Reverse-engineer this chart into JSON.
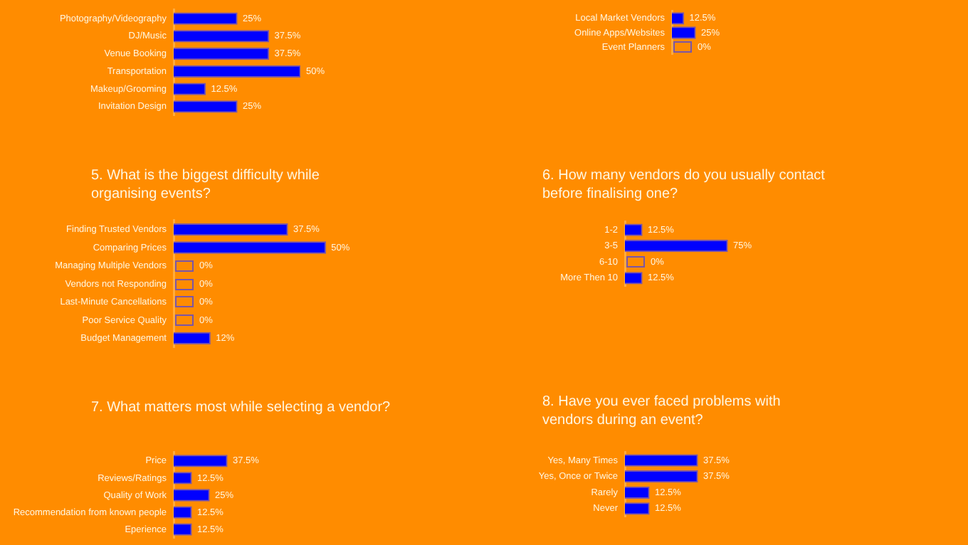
{
  "chart_data": [
    {
      "type": "bar",
      "orientation": "horizontal",
      "tick_labels": "y",
      "color": "#0000ff",
      "categories": [
        "Photography/Videography",
        "DJ/Music",
        "Venue Booking",
        "Transportation",
        "Makeup/Grooming",
        "Invitation Design"
      ],
      "values": [
        25,
        37.5,
        37.5,
        50,
        12.5,
        25
      ],
      "value_labels": [
        "25%",
        "37.5%",
        "37.5%",
        "50%",
        "12.5%",
        "25%"
      ]
    },
    {
      "type": "bar",
      "orientation": "horizontal",
      "tick_labels": "y",
      "color": "#0000ff",
      "categories": [
        "Local Market Vendors",
        "Online Apps/Websites",
        "Event Planners"
      ],
      "values": [
        12.5,
        25,
        0
      ],
      "value_labels": [
        "12.5%",
        "25%",
        "0%"
      ]
    },
    {
      "type": "bar",
      "orientation": "horizontal",
      "tick_labels": "y",
      "color": "#0000ff",
      "title": "5. What is the biggest difficulty while organising events?",
      "categories": [
        "Finding Trusted Vendors",
        "Comparing Prices",
        "Managing Multiple Vendors",
        "Vendors not Responding",
        "Last-Minute Cancellations",
        "Poor Service Quality",
        "Budget Management"
      ],
      "values": [
        37.5,
        50,
        0,
        0,
        0,
        0,
        12
      ],
      "value_labels": [
        "37.5%",
        "50%",
        "0%",
        "0%",
        "0%",
        "0%",
        "12%"
      ]
    },
    {
      "type": "bar",
      "orientation": "horizontal",
      "tick_labels": "y",
      "color": "#0000ff",
      "title": "6. How many vendors do you usually contact before finalising one?",
      "categories": [
        "1-2",
        "3-5",
        "6-10",
        "More Then 10"
      ],
      "values": [
        12.5,
        75,
        0,
        12.5
      ],
      "value_labels": [
        "12.5%",
        "75%",
        "0%",
        "12.5%"
      ]
    },
    {
      "type": "bar",
      "orientation": "horizontal",
      "tick_labels": "y",
      "color": "#0000ff",
      "title": "7. What matters most while selecting a vendor?",
      "categories": [
        "Price",
        "Reviews/Ratings",
        "Quality of Work",
        "Recommendation from known people",
        "Eperience"
      ],
      "values": [
        37.5,
        12.5,
        25,
        12.5,
        12.5
      ],
      "value_labels": [
        "37.5%",
        "12.5%",
        "25%",
        "12.5%",
        "12.5%"
      ]
    },
    {
      "type": "bar",
      "orientation": "horizontal",
      "tick_labels": "y",
      "color": "#0000ff",
      "title": "8. Have you ever faced problems with vendors during an event?",
      "categories": [
        "Yes, Many Times",
        "Yes, Once or Twice",
        "Rarely",
        "Never"
      ],
      "values": [
        37.5,
        37.5,
        12.5,
        12.5
      ],
      "value_labels": [
        "37.5%",
        "37.5%",
        "12.5%",
        "12.5%"
      ]
    }
  ]
}
